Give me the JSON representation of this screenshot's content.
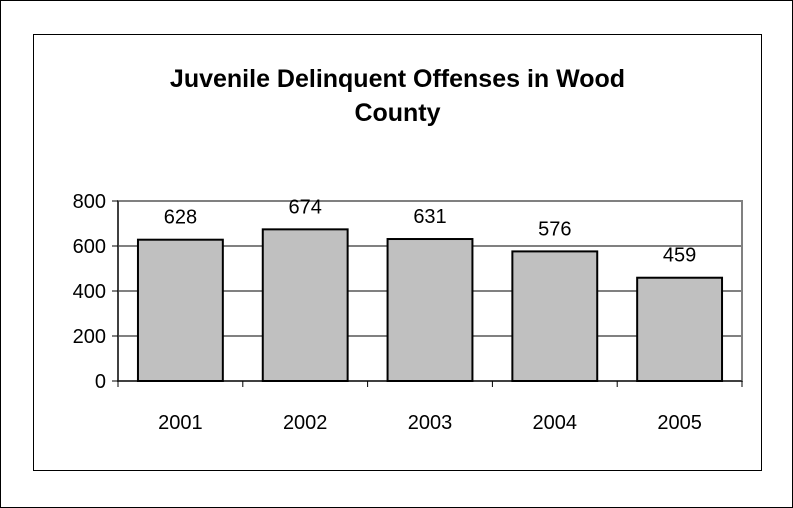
{
  "chart_data": {
    "type": "bar",
    "title_lines": [
      "Juvenile Delinquent Offenses in Wood",
      "County"
    ],
    "categories": [
      "2001",
      "2002",
      "2003",
      "2004",
      "2005"
    ],
    "values": [
      628,
      674,
      631,
      576,
      459
    ],
    "data_labels": [
      "628",
      "674",
      "631",
      "576",
      "459"
    ],
    "yticks": [
      0,
      200,
      400,
      600,
      800
    ],
    "ylim": [
      0,
      800
    ],
    "grid": true,
    "legend": "none",
    "colors": {
      "bar_fill": "#c0c0c0",
      "bar_stroke": "#000000",
      "gridline": "#000000",
      "plot_border": "#808080",
      "axis": "#000000"
    }
  }
}
